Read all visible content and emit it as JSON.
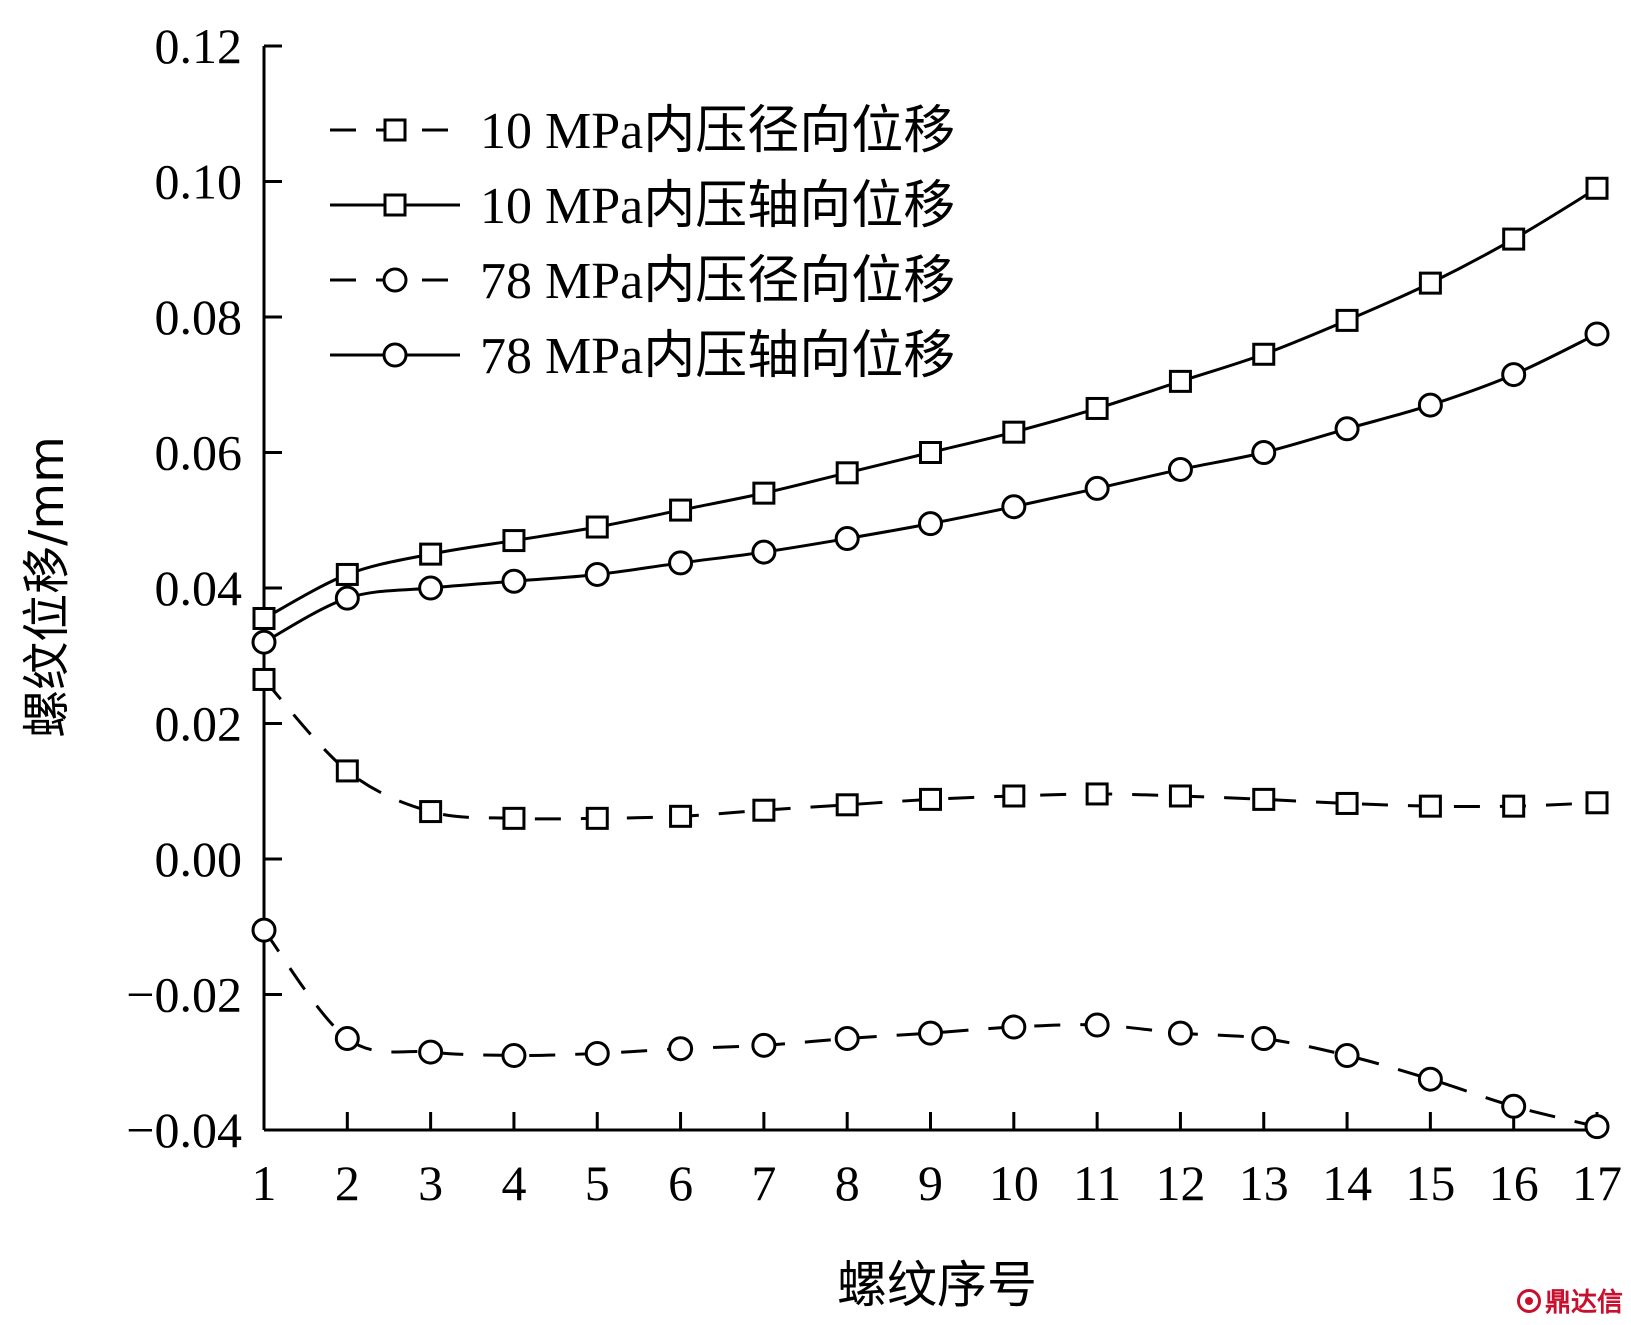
{
  "chart_data": {
    "type": "line",
    "xlabel": "螺纹序号",
    "ylabel": "螺纹位移/mm",
    "xlim": [
      1,
      17
    ],
    "ylim": [
      -0.04,
      0.12
    ],
    "x": [
      1,
      2,
      3,
      4,
      5,
      6,
      7,
      8,
      9,
      10,
      11,
      12,
      13,
      14,
      15,
      16,
      17
    ],
    "x_ticks": [
      "1",
      "2",
      "3",
      "4",
      "5",
      "6",
      "7",
      "8",
      "9",
      "10",
      "11",
      "12",
      "13",
      "14",
      "15",
      "16",
      "17"
    ],
    "y_ticks": [
      "0.12",
      "0.10",
      "0.08",
      "0.06",
      "0.04",
      "0.02",
      "0.00",
      "−0.02",
      "−0.04"
    ],
    "y_tick_values": [
      0.12,
      0.1,
      0.08,
      0.06,
      0.04,
      0.02,
      0.0,
      -0.02,
      -0.04
    ],
    "legend_position": "top-left",
    "grid": false,
    "series": [
      {
        "name": "10 MPa内压径向位移",
        "marker": "square",
        "linestyle": "dashed",
        "values": [
          0.0265,
          0.013,
          0.007,
          0.006,
          0.006,
          0.0063,
          0.0072,
          0.008,
          0.0088,
          0.0093,
          0.0096,
          0.0093,
          0.0088,
          0.0082,
          0.0078,
          0.0078,
          0.0083
        ]
      },
      {
        "name": "10 MPa内压轴向位移",
        "marker": "square",
        "linestyle": "solid",
        "values": [
          0.0355,
          0.042,
          0.045,
          0.047,
          0.049,
          0.0515,
          0.054,
          0.057,
          0.06,
          0.063,
          0.0665,
          0.0705,
          0.0745,
          0.0795,
          0.085,
          0.0915,
          0.099
        ]
      },
      {
        "name": "78 MPa内压径向位移",
        "marker": "circle",
        "linestyle": "dashed",
        "values": [
          -0.0105,
          -0.0265,
          -0.0285,
          -0.029,
          -0.0287,
          -0.028,
          -0.0275,
          -0.0265,
          -0.0257,
          -0.0248,
          -0.0245,
          -0.0257,
          -0.0265,
          -0.029,
          -0.0325,
          -0.0365,
          -0.0395
        ]
      },
      {
        "name": "78 MPa内压轴向位移",
        "marker": "circle",
        "linestyle": "solid",
        "values": [
          0.032,
          0.0385,
          0.04,
          0.041,
          0.042,
          0.0437,
          0.0453,
          0.0473,
          0.0495,
          0.052,
          0.0547,
          0.0575,
          0.06,
          0.0635,
          0.067,
          0.0715,
          0.0775
        ]
      }
    ]
  },
  "watermark": {
    "text": "鼎达信",
    "color": "#c8102e"
  }
}
